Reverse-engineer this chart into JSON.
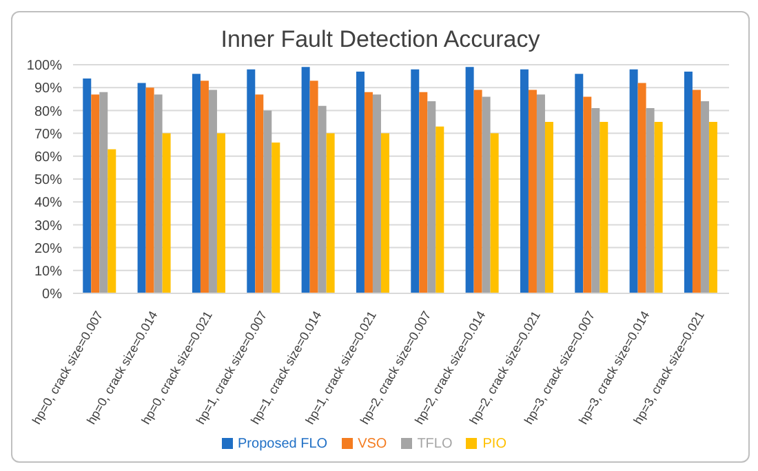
{
  "chart_data": {
    "type": "bar",
    "title": "Inner Fault Detection Accuracy",
    "categories": [
      "hp=0, crack size=0.007",
      "hp=0, crack size=0.014",
      "hp=0, crack size=0.021",
      "hp=1, crack size=0.007",
      "hp=1, crack size=0.014",
      "hp=1, crack size=0.021",
      "hp=2, crack size=0.007",
      "hp=2, crack size=0.014",
      "hp=2, crack size=0.021",
      "hp=3, crack size=0.007",
      "hp=3, crack size=0.014",
      "hp=3, crack size=0.021"
    ],
    "series": [
      {
        "name": "Proposed FLO",
        "color": "#1f6fc5",
        "values": [
          94,
          92,
          96,
          98,
          99,
          97,
          98,
          99,
          98,
          96,
          98,
          97
        ]
      },
      {
        "name": "VSO",
        "color": "#f47c20",
        "values": [
          87,
          90,
          93,
          87,
          93,
          88,
          88,
          89,
          89,
          86,
          92,
          89
        ]
      },
      {
        "name": "TFLO",
        "color": "#a5a5a5",
        "values": [
          88,
          87,
          89,
          80,
          82,
          87,
          84,
          86,
          87,
          81,
          81,
          84
        ]
      },
      {
        "name": "PIO",
        "color": "#ffc000",
        "values": [
          63,
          70,
          70,
          66,
          70,
          70,
          73,
          70,
          75,
          75,
          75,
          75
        ]
      }
    ],
    "ylim": [
      0,
      100
    ],
    "yticks": [
      {
        "value": 0,
        "label": "0%"
      },
      {
        "value": 10,
        "label": "10%"
      },
      {
        "value": 20,
        "label": "20%"
      },
      {
        "value": 30,
        "label": "30%"
      },
      {
        "value": 40,
        "label": "40%"
      },
      {
        "value": 50,
        "label": "50%"
      },
      {
        "value": 60,
        "label": "60%"
      },
      {
        "value": 70,
        "label": "70%"
      },
      {
        "value": 80,
        "label": "80%"
      },
      {
        "value": 90,
        "label": "90%"
      },
      {
        "value": 100,
        "label": "100%"
      }
    ],
    "grid": "y",
    "legend": "bottom"
  }
}
